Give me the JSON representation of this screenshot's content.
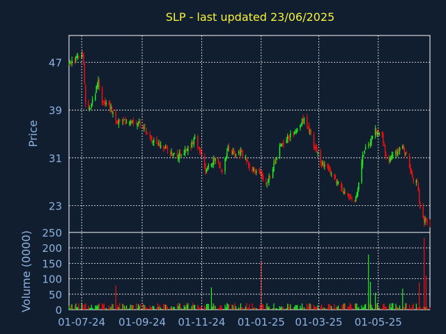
{
  "chart_data": {
    "type": "candlestick",
    "title": "SLP - last updated 23/06/2025",
    "colors": {
      "background": "#101e2f",
      "frame": "#ffffff",
      "grid": "#ffffff",
      "up": "#22ee22",
      "down": "#ee1111",
      "title": "#f7f33a",
      "axis_text": "#8fb3e0"
    },
    "grid": true,
    "price_panel": {
      "ylabel": "Price",
      "ylim": [
        18.5,
        51.5
      ],
      "yticks": [
        23,
        31,
        39,
        47
      ]
    },
    "volume_panel": {
      "ylabel": "Volume (0000)",
      "ylim": [
        0,
        250
      ],
      "yticks": [
        0,
        50,
        100,
        150,
        200,
        250
      ]
    },
    "x_axis": {
      "range": [
        "2024-06-18",
        "2025-06-23"
      ],
      "tick_labels": [
        "01-07-24",
        "01-09-24",
        "01-11-24",
        "01-01-25",
        "01-03-25",
        "01-05-25"
      ],
      "tick_dates": [
        "2024-07-01",
        "2024-09-01",
        "2024-11-01",
        "2025-01-01",
        "2025-03-01",
        "2025-05-01"
      ]
    },
    "price_path": [
      [
        "2024-06-18",
        46.6
      ],
      [
        "2024-06-25",
        47.6
      ],
      [
        "2024-07-01",
        48.2
      ],
      [
        "2024-07-03",
        46.8
      ],
      [
        "2024-07-05",
        40.5
      ],
      [
        "2024-07-10",
        39.2
      ],
      [
        "2024-07-15",
        42.0
      ],
      [
        "2024-07-18",
        43.8
      ],
      [
        "2024-07-22",
        40.5
      ],
      [
        "2024-07-29",
        40.0
      ],
      [
        "2024-08-05",
        37.0
      ],
      [
        "2024-08-12",
        37.0
      ],
      [
        "2024-08-22",
        37.3
      ],
      [
        "2024-09-01",
        36.6
      ],
      [
        "2024-09-10",
        34.5
      ],
      [
        "2024-09-20",
        33.0
      ],
      [
        "2024-10-01",
        31.8
      ],
      [
        "2024-10-10",
        31.3
      ],
      [
        "2024-10-20",
        33.0
      ],
      [
        "2024-10-25",
        34.3
      ],
      [
        "2024-10-30",
        32.0
      ],
      [
        "2024-11-05",
        28.8
      ],
      [
        "2024-11-10",
        30.0
      ],
      [
        "2024-11-15",
        31.0
      ],
      [
        "2024-11-22",
        28.5
      ],
      [
        "2024-11-28",
        32.5
      ],
      [
        "2024-12-05",
        31.6
      ],
      [
        "2024-12-12",
        31.8
      ],
      [
        "2024-12-18",
        30.3
      ],
      [
        "2024-12-25",
        28.8
      ],
      [
        "2025-01-01",
        28.4
      ],
      [
        "2025-01-06",
        26.5
      ],
      [
        "2025-01-10",
        27.8
      ],
      [
        "2025-01-15",
        30.5
      ],
      [
        "2025-01-22",
        33.5
      ],
      [
        "2025-02-01",
        34.8
      ],
      [
        "2025-02-10",
        36.8
      ],
      [
        "2025-02-15",
        37.5
      ],
      [
        "2025-02-20",
        35.5
      ],
      [
        "2025-02-25",
        32.5
      ],
      [
        "2025-03-05",
        30.0
      ],
      [
        "2025-03-15",
        28.0
      ],
      [
        "2025-03-25",
        25.5
      ],
      [
        "2025-04-01",
        24.8
      ],
      [
        "2025-04-07",
        23.8
      ],
      [
        "2025-04-11",
        26.5
      ],
      [
        "2025-04-15",
        31.5
      ],
      [
        "2025-04-22",
        33.5
      ],
      [
        "2025-04-28",
        35.5
      ],
      [
        "2025-05-05",
        34.5
      ],
      [
        "2025-05-10",
        30.8
      ],
      [
        "2025-05-18",
        31.5
      ],
      [
        "2025-05-25",
        32.8
      ],
      [
        "2025-05-30",
        31.5
      ],
      [
        "2025-06-05",
        27.5
      ],
      [
        "2025-06-10",
        27.0
      ],
      [
        "2025-06-13",
        22.8
      ],
      [
        "2025-06-16",
        20.5
      ],
      [
        "2025-06-23",
        19.5
      ]
    ],
    "volume_spikes": [
      [
        "2024-08-05",
        78
      ],
      [
        "2024-11-10",
        72
      ],
      [
        "2025-01-01",
        155
      ],
      [
        "2025-04-20",
        178
      ],
      [
        "2025-04-23",
        90
      ],
      [
        "2025-04-28",
        55
      ],
      [
        "2025-05-25",
        68
      ],
      [
        "2025-06-12",
        88
      ],
      [
        "2025-06-17",
        232
      ],
      [
        "2025-06-19",
        110
      ]
    ]
  }
}
